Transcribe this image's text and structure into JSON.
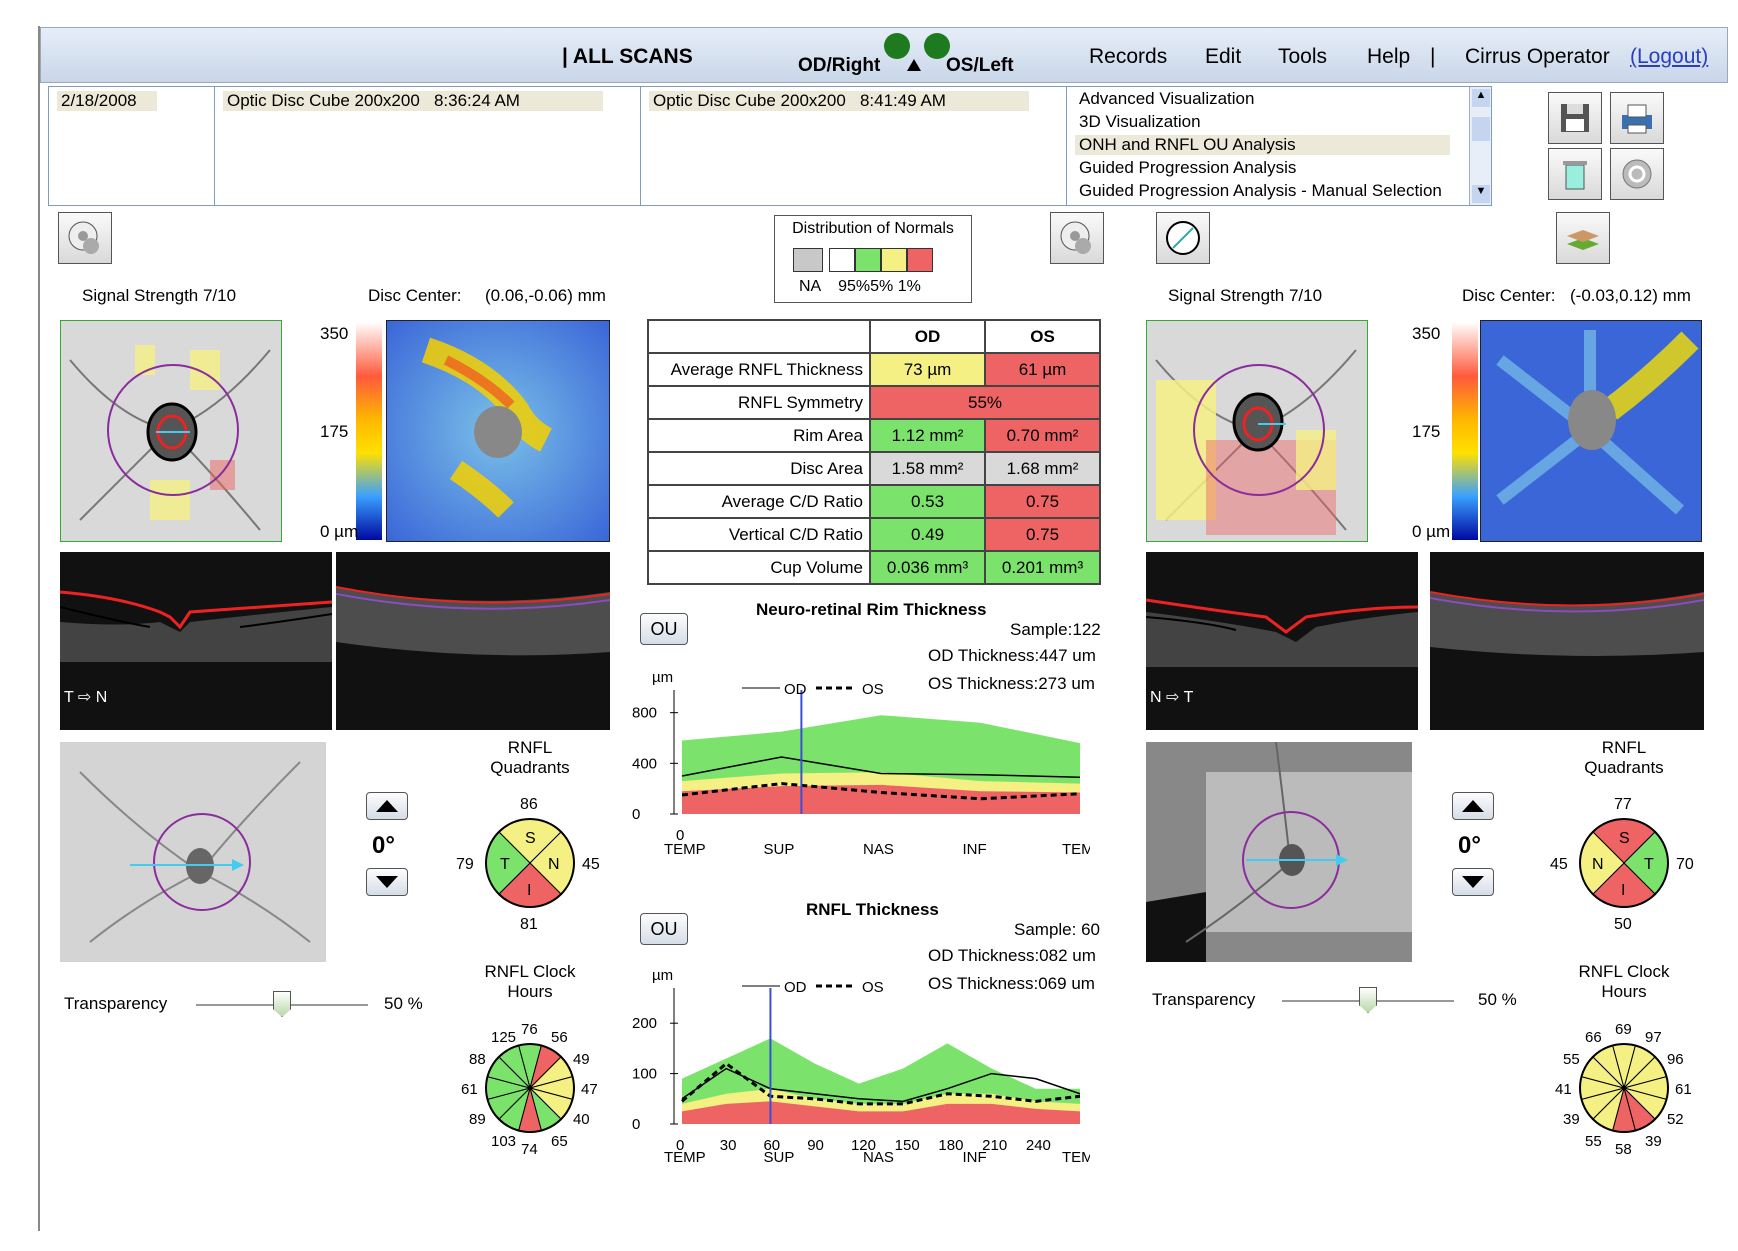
{
  "header": {
    "all_scans": "| ALL SCANS",
    "od": "OD/Right",
    "os": "OS/Left",
    "menus": [
      "Records",
      "Edit",
      "Tools",
      "Help"
    ],
    "separator": "|",
    "operator": "Cirrus Operator",
    "logout": "(Logout)"
  },
  "info": {
    "date": "2/18/2008",
    "scan1": "Optic Disc Cube 200x200   8:36:24 AM",
    "scan2": "Optic Disc Cube 200x200   8:41:49 AM",
    "analyses": [
      "Advanced Visualization",
      "3D Visualization",
      "ONH and RNFL OU Analysis",
      "Guided Progression Analysis",
      "Guided Progression Analysis - Manual Selection"
    ],
    "selected_analysis_index": 2
  },
  "legend": {
    "title": "Distribution of Normals",
    "labels": "NA    95%5% 1%",
    "colors": [
      "#c8c8c8",
      "#ffffff",
      "#7be36b",
      "#f4f083",
      "#ee6464"
    ]
  },
  "od": {
    "signal": "Signal Strength  7/10",
    "disc_center_label": "Disc Center:",
    "disc_center": "(0.06,-0.06) mm",
    "scale": [
      "350",
      "175",
      "0 µm"
    ],
    "orientation": "T ⇨ N",
    "rotation": "0°",
    "transparency_label": "Transparency",
    "transparency_value": "50 %",
    "transparency_level": 0.5,
    "quadrants": {
      "title": "RNFL Quadrants",
      "S": "86",
      "T": "79",
      "N": "45",
      "I": "81",
      "colors": {
        "S": "#f4f083",
        "T": "#7be36b",
        "N": "#f4f083",
        "I": "#ee6464"
      }
    },
    "clock": {
      "title": "RNFL Clock Hours",
      "values": [
        "76",
        "56",
        "49",
        "47",
        "40",
        "65",
        "74",
        "103",
        "89",
        "61",
        "88",
        "125"
      ],
      "colors": [
        "#7be36b",
        "#ee6464",
        "#f4f083",
        "#f4f083",
        "#f4f083",
        "#7be36b",
        "#ee6464",
        "#7be36b",
        "#7be36b",
        "#7be36b",
        "#7be36b",
        "#7be36b"
      ]
    }
  },
  "os": {
    "signal": "Signal Strength  7/10",
    "disc_center_label": "Disc Center:",
    "disc_center": "(-0.03,0.12) mm",
    "scale": [
      "350",
      "175",
      "0 µm"
    ],
    "orientation": "N ⇨ T",
    "rotation": "0°",
    "transparency_label": "Transparency",
    "transparency_value": "50 %",
    "transparency_level": 0.5,
    "quadrants": {
      "title": "RNFL Quadrants",
      "S": "77",
      "T": "70",
      "N": "45",
      "I": "50",
      "colors": {
        "S": "#ee6464",
        "T": "#7be36b",
        "N": "#f4f083",
        "I": "#ee6464"
      }
    },
    "clock": {
      "title": "RNFL Clock Hours",
      "values": [
        "69",
        "97",
        "96",
        "61",
        "52",
        "39",
        "58",
        "55",
        "39",
        "41",
        "55",
        "66"
      ],
      "colors": [
        "#f4f083",
        "#f4f083",
        "#f4f083",
        "#f4f083",
        "#f4f083",
        "#ee6464",
        "#ee6464",
        "#f4f083",
        "#f4f083",
        "#f4f083",
        "#f4f083",
        "#f4f083"
      ]
    }
  },
  "metrics": {
    "head": [
      "OD",
      "OS"
    ],
    "rows": [
      {
        "label": "Average RNFL Thickness",
        "od": "73 µm",
        "os": "61 µm",
        "odc": "y",
        "osc": "rd"
      },
      {
        "label": "RNFL Symmetry",
        "both": "55%",
        "c": "rd"
      },
      {
        "label": "Rim Area",
        "od": "1.12 mm²",
        "os": "0.70 mm²",
        "odc": "g",
        "osc": "rd"
      },
      {
        "label": "Disc Area",
        "od": "1.58 mm²",
        "os": "1.68 mm²",
        "odc": "gy",
        "osc": "gy"
      },
      {
        "label": "Average C/D Ratio",
        "od": "0.53",
        "os": "0.75",
        "odc": "g",
        "osc": "rd"
      },
      {
        "label": "Vertical C/D Ratio",
        "od": "0.49",
        "os": "0.75",
        "odc": "g",
        "osc": "rd"
      },
      {
        "label": "Cup Volume",
        "od": "0.036 mm³",
        "os": "0.201 mm³",
        "odc": "g",
        "osc": "g"
      }
    ]
  },
  "charts": {
    "ou_label": "OU",
    "rim": {
      "title": "Neuro-retinal Rim Thickness",
      "sample": "Sample:122",
      "od_thickness": "OD Thickness:447 um",
      "os_thickness": "OS Thickness:273 um",
      "ylabel": "µm",
      "legend_od": "OD",
      "legend_os": "OS",
      "yticks": [
        "800",
        "400",
        "0"
      ],
      "xticks": [
        "TEMP",
        "SUP",
        "NAS",
        "INF",
        "TEMP"
      ]
    },
    "rnfl": {
      "title": "RNFL Thickness",
      "sample": "Sample: 60",
      "od_thickness": "OD Thickness:082 um",
      "os_thickness": "OS Thickness:069 um",
      "ylabel": "µm",
      "legend_od": "OD",
      "legend_os": "OS",
      "yticks": [
        "200",
        "100",
        "0"
      ],
      "xnums": [
        "0",
        "30",
        "60",
        "90",
        "120",
        "150",
        "180",
        "210",
        "240"
      ],
      "xticks": [
        "TEMP",
        "SUP",
        "NAS",
        "INF",
        "TEMP"
      ]
    }
  },
  "chart_data": [
    {
      "type": "area",
      "title": "Neuro-retinal Rim Thickness",
      "ylabel": "µm",
      "ylim": [
        0,
        900
      ],
      "categories": [
        "TEMP",
        "SUP",
        "NAS",
        "INF",
        "TEMP"
      ],
      "series": [
        {
          "name": "OD",
          "values": [
            300,
            450,
            320,
            310,
            290
          ]
        },
        {
          "name": "OS",
          "values": [
            150,
            240,
            170,
            120,
            160
          ]
        }
      ]
    },
    {
      "type": "area",
      "title": "RNFL Thickness",
      "ylabel": "µm",
      "ylim": [
        0,
        250
      ],
      "x": [
        0,
        30,
        60,
        90,
        120,
        150,
        180,
        210,
        240,
        256
      ],
      "series": [
        {
          "name": "OD",
          "values": [
            50,
            110,
            70,
            60,
            50,
            45,
            70,
            100,
            90,
            60
          ]
        },
        {
          "name": "OS",
          "values": [
            45,
            120,
            55,
            50,
            40,
            40,
            60,
            55,
            45,
            55
          ]
        }
      ]
    }
  ]
}
